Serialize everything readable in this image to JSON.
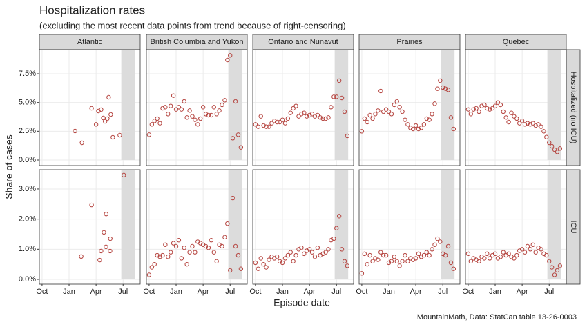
{
  "title": "Hospitalization rates",
  "subtitle": "(excluding the most recent data points from trend because of right-censoring)",
  "caption": "MountainMath, Data: StatCan table 13-26-0003",
  "chart_data": {
    "type": "scatter",
    "x_label": "Episode date",
    "y_label": "Share of cases",
    "columns": [
      "Atlantic",
      "British Columbia and Yukon",
      "Ontario and Nunavut",
      "Prairies",
      "Quebec"
    ],
    "rows": [
      {
        "label": "Hospitalized (no ICU)",
        "ylim": [
          -0.48,
          9.6
        ],
        "yticks": [
          {
            "value": 0,
            "label": "0.0%"
          },
          {
            "value": 2.5,
            "label": "2.5%"
          },
          {
            "value": 5,
            "label": "5.0%"
          },
          {
            "value": 7.5,
            "label": "7.5%"
          }
        ]
      },
      {
        "label": "ICU",
        "ylim": [
          -0.16,
          3.64
        ],
        "yticks": [
          {
            "value": 0,
            "label": "0.0%"
          },
          {
            "value": 1,
            "label": "1.0%"
          },
          {
            "value": 2,
            "label": "2.0%"
          },
          {
            "value": 3,
            "label": "3.0%"
          }
        ]
      }
    ],
    "xlim": [
      -0.3,
      10.9
    ],
    "xticks": [
      {
        "value": 0,
        "label": "Oct"
      },
      {
        "value": 3,
        "label": "Jan"
      },
      {
        "value": 6,
        "label": "Apr"
      },
      {
        "value": 9,
        "label": "Jul"
      }
    ],
    "censored_x": [
      8.8,
      10.3
    ],
    "color": "#b5443f",
    "shade_color": "#dcdcdc",
    "grid": true,
    "panels": [
      {
        "x": [
          3.66,
          4.43,
          5.5,
          6.0,
          6.26,
          6.56,
          6.8,
          7.0,
          7.25,
          7.4,
          7.63,
          7.86,
          8.63
        ],
        "values": [
          2.52,
          1.5,
          4.5,
          3.1,
          4.26,
          4.38,
          3.66,
          3.36,
          3.6,
          5.46,
          3.96,
          1.98,
          2.16
        ]
      },
      {
        "x": [
          0,
          0.3,
          0.6,
          0.9,
          1.2,
          1.5,
          1.8,
          2.1,
          2.4,
          2.7,
          3.0,
          3.3,
          3.6,
          3.9,
          4.2,
          4.5,
          4.8,
          5.1,
          5.4,
          5.7,
          6.0,
          6.3,
          6.6,
          6.9,
          7.2,
          7.5,
          7.8,
          8.1,
          8.4,
          8.7,
          9.0,
          9.3,
          9.6,
          9.9,
          10.2
        ],
        "values": [
          2.2,
          3.1,
          3.4,
          3.6,
          3.2,
          4.5,
          4.6,
          4.0,
          4.7,
          5.6,
          4.4,
          4.6,
          4.4,
          5.1,
          3.7,
          4.3,
          3.8,
          3.5,
          3.1,
          3.6,
          4.6,
          4.0,
          3.9,
          3.9,
          4.6,
          4.0,
          4.3,
          4.8,
          5.2,
          8.7,
          9.1,
          1.9,
          5.1,
          2.2,
          1.1
        ]
      },
      {
        "x": [
          0,
          0.3,
          0.6,
          0.9,
          1.2,
          1.5,
          1.8,
          2.1,
          2.4,
          2.7,
          3.0,
          3.3,
          3.6,
          3.9,
          4.2,
          4.5,
          4.8,
          5.1,
          5.4,
          5.7,
          6.0,
          6.3,
          6.6,
          6.9,
          7.2,
          7.5,
          7.8,
          8.1,
          8.4,
          8.7,
          9.0,
          9.3,
          9.6,
          9.9,
          10.2
        ],
        "values": [
          3.1,
          2.9,
          3.8,
          3.0,
          2.9,
          2.9,
          3.2,
          3.4,
          3.3,
          3.3,
          3.5,
          3.2,
          3.6,
          4.1,
          4.5,
          4.7,
          3.8,
          4.0,
          4.1,
          3.8,
          3.9,
          4.0,
          3.8,
          3.9,
          3.7,
          3.6,
          3.6,
          3.7,
          4.6,
          5.5,
          5.5,
          6.9,
          5.4,
          4.2,
          2.1
        ]
      },
      {
        "x": [
          0,
          0.3,
          0.6,
          0.9,
          1.2,
          1.5,
          1.8,
          2.1,
          2.4,
          2.7,
          3.0,
          3.3,
          3.6,
          3.9,
          4.2,
          4.5,
          4.8,
          5.1,
          5.4,
          5.7,
          6.0,
          6.3,
          6.6,
          6.9,
          7.2,
          7.5,
          7.8,
          8.1,
          8.4,
          8.7,
          9.0,
          9.3,
          9.6,
          9.9,
          10.2
        ],
        "values": [
          2.5,
          3.6,
          3.3,
          3.9,
          3.6,
          4.0,
          4.3,
          6.0,
          4.2,
          4.4,
          4.2,
          4.0,
          4.8,
          5.1,
          4.6,
          4.2,
          3.5,
          3.1,
          2.8,
          2.7,
          3.0,
          2.7,
          2.8,
          3.1,
          3.6,
          3.5,
          4.0,
          4.9,
          6.2,
          6.9,
          6.3,
          6.2,
          6.1,
          3.7,
          2.7
        ]
      },
      {
        "x": [
          0,
          0.3,
          0.6,
          0.9,
          1.2,
          1.5,
          1.8,
          2.1,
          2.4,
          2.7,
          3.0,
          3.3,
          3.6,
          3.9,
          4.2,
          4.5,
          4.8,
          5.1,
          5.4,
          5.7,
          6.0,
          6.3,
          6.6,
          6.9,
          7.2,
          7.5,
          7.8,
          8.1,
          8.4,
          8.7,
          9.0,
          9.3,
          9.6,
          9.9,
          10.2
        ],
        "values": [
          4.4,
          4.0,
          4.4,
          4.5,
          4.2,
          4.7,
          4.8,
          4.5,
          4.4,
          4.5,
          4.7,
          5.0,
          4.8,
          4.2,
          3.7,
          3.3,
          4.1,
          3.8,
          3.6,
          3.2,
          3.4,
          3.1,
          3.2,
          3.1,
          3.2,
          3.0,
          3.1,
          2.9,
          2.5,
          2.0,
          1.5,
          1.2,
          0.9,
          0.7,
          1.0
        ]
      },
      {
        "x": [
          4.35,
          5.5,
          6.4,
          6.56,
          6.87,
          7.1,
          7.12,
          7.56,
          7.58,
          9.08
        ],
        "values": [
          0.76,
          2.47,
          0.64,
          0.94,
          1.56,
          1.08,
          2.17,
          0.94,
          1.35,
          3.46
        ]
      },
      {
        "x": [
          0,
          0.3,
          0.6,
          0.9,
          1.2,
          1.5,
          1.8,
          2.1,
          2.4,
          2.7,
          3.0,
          3.3,
          3.6,
          3.9,
          4.2,
          4.5,
          4.8,
          5.1,
          5.4,
          5.7,
          6.0,
          6.3,
          6.6,
          6.9,
          7.2,
          7.5,
          7.8,
          8.1,
          8.4,
          8.7,
          9.0,
          9.3,
          9.6,
          9.9,
          10.2
        ],
        "values": [
          0.15,
          0.4,
          0.5,
          0.8,
          0.75,
          0.8,
          1.15,
          0.75,
          0.9,
          1.2,
          1.1,
          1.3,
          0.7,
          1.05,
          0.5,
          0.9,
          1.1,
          0.9,
          1.25,
          1.2,
          1.15,
          1.1,
          1.05,
          1.3,
          0.9,
          0.6,
          1.15,
          1.1,
          1.4,
          1.85,
          0.3,
          2.7,
          1.1,
          0.8,
          0.35
        ]
      },
      {
        "x": [
          0,
          0.3,
          0.6,
          0.9,
          1.2,
          1.5,
          1.8,
          2.1,
          2.4,
          2.7,
          3.0,
          3.3,
          3.6,
          3.9,
          4.2,
          4.5,
          4.8,
          5.1,
          5.4,
          5.7,
          6.0,
          6.3,
          6.6,
          6.9,
          7.2,
          7.5,
          7.8,
          8.1,
          8.4,
          8.7,
          9.0,
          9.3,
          9.6,
          9.9,
          10.2
        ],
        "values": [
          0.55,
          0.35,
          0.7,
          0.5,
          0.4,
          0.65,
          0.75,
          0.7,
          0.75,
          0.6,
          0.55,
          0.7,
          0.8,
          0.9,
          0.6,
          0.8,
          1.0,
          1.05,
          0.85,
          0.95,
          1.0,
          0.9,
          0.75,
          1.05,
          0.8,
          0.85,
          0.9,
          1.0,
          1.3,
          1.35,
          1.7,
          2.1,
          1.0,
          0.6,
          0.45
        ]
      },
      {
        "x": [
          0,
          0.3,
          0.6,
          0.9,
          1.2,
          1.5,
          1.8,
          2.1,
          2.4,
          2.7,
          3.0,
          3.3,
          3.6,
          3.9,
          4.2,
          4.5,
          4.8,
          5.1,
          5.4,
          5.7,
          6.0,
          6.3,
          6.6,
          6.9,
          7.2,
          7.5,
          7.8,
          8.1,
          8.4,
          8.7,
          9.0,
          9.3,
          9.6,
          9.9,
          10.2
        ],
        "values": [
          0.2,
          0.85,
          0.5,
          0.8,
          0.6,
          0.7,
          0.65,
          0.9,
          0.8,
          0.8,
          0.55,
          0.6,
          0.75,
          0.6,
          0.45,
          0.6,
          0.8,
          0.6,
          0.7,
          0.65,
          0.7,
          0.85,
          0.75,
          0.8,
          0.9,
          0.8,
          1.0,
          1.15,
          1.35,
          1.25,
          0.85,
          0.8,
          1.1,
          0.55,
          0.35
        ]
      },
      {
        "x": [
          0,
          0.3,
          0.6,
          0.9,
          1.2,
          1.5,
          1.8,
          2.1,
          2.4,
          2.7,
          3.0,
          3.3,
          3.6,
          3.9,
          4.2,
          4.5,
          4.8,
          5.1,
          5.4,
          5.7,
          6.0,
          6.3,
          6.6,
          6.9,
          7.2,
          7.5,
          7.8,
          8.1,
          8.4,
          8.7,
          9.0,
          9.3,
          9.6,
          9.9,
          10.2
        ],
        "values": [
          0.85,
          0.6,
          0.7,
          0.65,
          0.6,
          0.75,
          0.7,
          0.85,
          0.7,
          0.8,
          0.85,
          0.7,
          0.75,
          0.9,
          0.8,
          0.85,
          0.75,
          0.7,
          0.8,
          0.95,
          1.0,
          0.9,
          1.1,
          1.0,
          1.15,
          0.9,
          1.05,
          1.0,
          0.85,
          0.8,
          0.6,
          0.4,
          0.15,
          0.3,
          0.45
        ]
      }
    ]
  }
}
